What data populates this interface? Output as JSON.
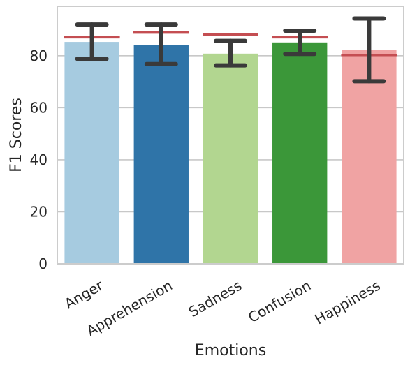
{
  "chart_data": {
    "type": "bar",
    "xlabel": "Emotions",
    "ylabel": "F1 Scores",
    "categories": [
      "Anger",
      "Apprehension",
      "Sadness",
      "Confusion",
      "Happiness"
    ],
    "values": [
      85.3,
      84.0,
      80.8,
      85.1,
      82.1
    ],
    "error_low": [
      78.8,
      76.8,
      76.3,
      80.7,
      70.2
    ],
    "error_high": [
      92.0,
      92.0,
      85.7,
      89.6,
      94.3
    ],
    "reference_lines": [
      87.1,
      88.9,
      88.1,
      87.1,
      80.3
    ],
    "colors": [
      "#a6cbe0",
      "#2f74a8",
      "#b2d690",
      "#3b9739",
      "#f0a3a3"
    ],
    "error_color": "#3a3a3a",
    "reference_color": "#c44e52",
    "ylim": [
      0,
      99
    ],
    "yticks": [
      0,
      20,
      40,
      60,
      80
    ],
    "grid": true
  }
}
